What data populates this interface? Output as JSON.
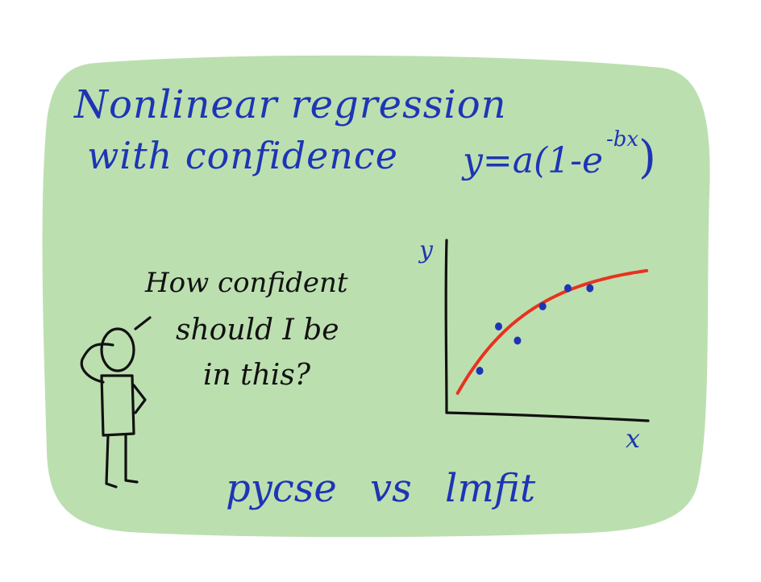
{
  "title": {
    "line1": "Nonlinear regression",
    "line2": "with confidence"
  },
  "equation": {
    "lhs": "y=a(1-e",
    "exponent": "-bx",
    "close": ")"
  },
  "speech": {
    "line1": "How confident",
    "line2": "should I be",
    "line3": "in this?"
  },
  "plot": {
    "y_label": "y",
    "x_label": "x"
  },
  "chart_data": {
    "type": "scatter",
    "x": [
      1.0,
      1.6,
      2.2,
      3.0,
      3.8,
      4.5
    ],
    "y": [
      2.0,
      4.2,
      3.5,
      5.2,
      6.1,
      6.1
    ],
    "fit": {
      "model": "y=a(1-e^(-bx))",
      "a": 7.5,
      "b": 0.42
    },
    "xlim": [
      0,
      6.4
    ],
    "ylim": [
      0,
      8.4
    ],
    "grid": false,
    "colors": {
      "points": "#1d35b5",
      "fit": "#e8321e",
      "axes": "#111111"
    }
  },
  "footer": "pycse vs lmfit",
  "colors": {
    "background": "#ffffff",
    "card": "#bcdfb0",
    "ink_blue": "#1d35b5",
    "ink_black": "#111111",
    "fit_red": "#e8321e"
  }
}
